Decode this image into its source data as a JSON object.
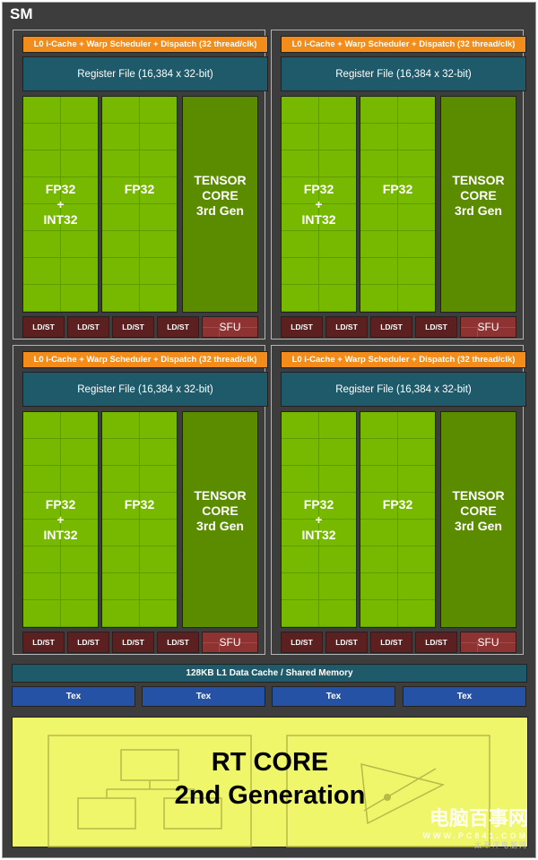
{
  "sm": {
    "title": "SM"
  },
  "quadrant": {
    "scheduler": "L0 i-Cache + Warp Scheduler + Dispatch (32 thread/clk)",
    "register_file": "Register File (16,384 x 32-bit)",
    "fp32_int32": [
      "FP32",
      "+",
      "INT32"
    ],
    "fp32": "FP32",
    "tensor": [
      "TENSOR",
      "CORE",
      "3rd Gen"
    ],
    "ldst": "LD/ST",
    "sfu": "SFU"
  },
  "quadrant_count": 4,
  "l1_cache": "128KB L1 Data Cache / Shared Memory",
  "tex": [
    "Tex",
    "Tex",
    "Tex",
    "Tex"
  ],
  "rt_core": {
    "line1": "RT CORE",
    "line2": "2nd Generation"
  },
  "watermark": {
    "brand": "电脑百事网",
    "url": "WWW.PC841.COM",
    "sub": "太平洋电脑网"
  },
  "colors": {
    "scheduler": "#f28c1b",
    "register_file": "#1f5a6a",
    "fp32": "#76b900",
    "tensor": "#5b8c00",
    "ldst": "#5c2020",
    "sfu": "#8e3232",
    "tex": "#2652a6",
    "rt_core": "#f0f66a"
  }
}
